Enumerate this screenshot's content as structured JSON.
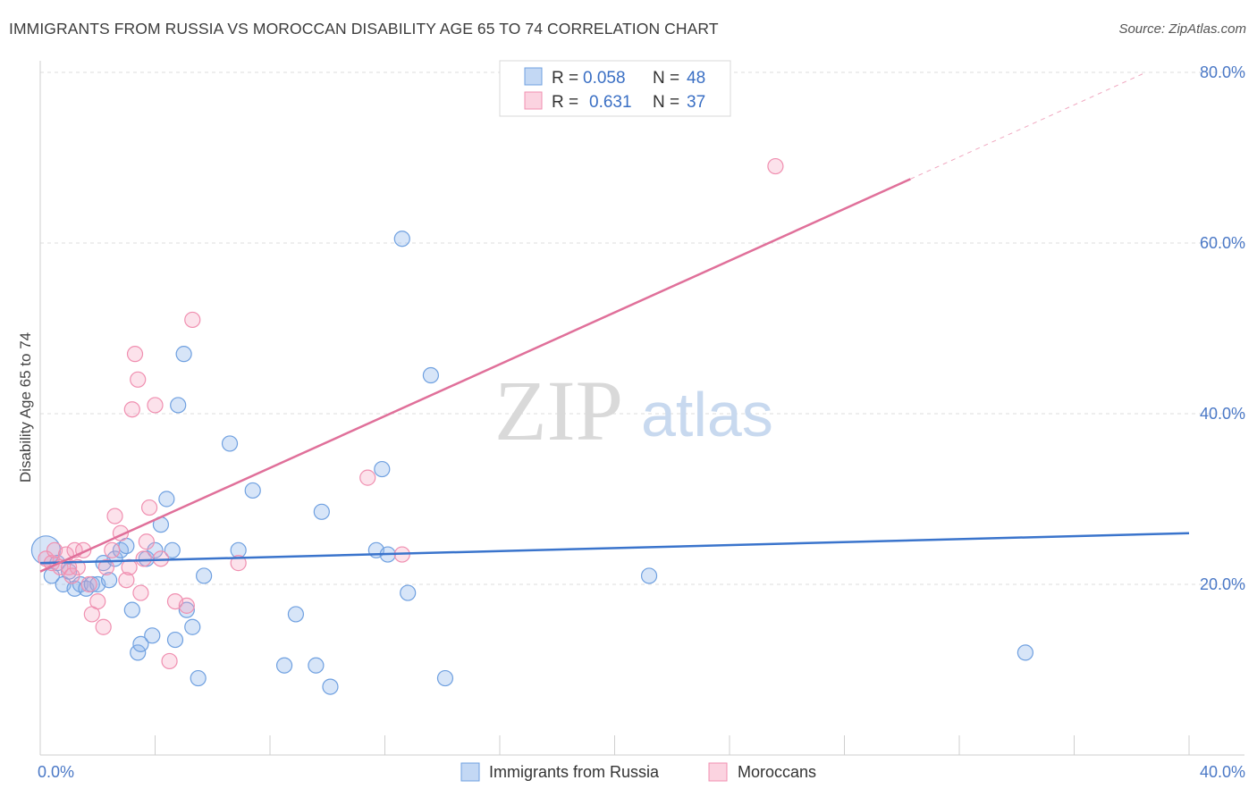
{
  "title": "IMMIGRANTS FROM RUSSIA VS MOROCCAN DISABILITY AGE 65 TO 74 CORRELATION CHART",
  "source": "Source: ZipAtlas.com",
  "watermark": {
    "zip": "ZIP",
    "atlas": "atlas"
  },
  "legend_top": [
    {
      "r_label": "R =",
      "r_value": "0.058",
      "n_label": "N =",
      "n_value": "48",
      "color": "#6fa0e0"
    },
    {
      "r_label": "R =",
      "r_value": "0.631",
      "n_label": "N =",
      "n_value": "37",
      "color": "#f08fb0"
    }
  ],
  "chart_data": {
    "type": "scatter",
    "title": "IMMIGRANTS FROM RUSSIA VS MOROCCAN DISABILITY AGE 65 TO 74 CORRELATION CHART",
    "xlabel": "",
    "ylabel": "Disability Age 65 to 74",
    "xlim": [
      0,
      40
    ],
    "ylim": [
      0,
      80
    ],
    "x_tick_labels": [
      "0.0%",
      "40.0%"
    ],
    "y_ticks": [
      20,
      40,
      60,
      80
    ],
    "y_tick_labels": [
      "20.0%",
      "40.0%",
      "60.0%",
      "80.0%"
    ],
    "grid": true,
    "legend_placement": "top-center",
    "series": [
      {
        "name": "Immigrants from Russia",
        "color": "#6fa0e0",
        "x": [
          0.2,
          0.4,
          0.6,
          0.8,
          1.0,
          1.2,
          1.4,
          1.6,
          1.8,
          2.0,
          2.2,
          2.4,
          2.6,
          2.8,
          3.0,
          3.2,
          3.4,
          3.5,
          3.7,
          3.9,
          4.0,
          4.2,
          4.4,
          4.6,
          4.7,
          4.8,
          5.0,
          5.1,
          5.3,
          5.5,
          5.7,
          6.6,
          6.9,
          7.4,
          8.5,
          8.9,
          9.6,
          9.8,
          10.1,
          11.7,
          11.9,
          12.1,
          12.6,
          12.8,
          13.6,
          14.1,
          21.2,
          34.3
        ],
        "y": [
          24.0,
          21.0,
          22.5,
          20.0,
          21.5,
          19.5,
          20.0,
          19.5,
          20.0,
          20.0,
          22.5,
          20.5,
          23.0,
          24.0,
          24.5,
          17.0,
          12.0,
          13.0,
          23.0,
          14.0,
          24.0,
          27.0,
          30.0,
          24.0,
          13.5,
          41.0,
          47.0,
          17.0,
          15.0,
          9.0,
          21.0,
          36.5,
          24.0,
          31.0,
          10.5,
          16.5,
          10.5,
          28.5,
          8.0,
          24.0,
          33.5,
          23.5,
          60.5,
          19.0,
          44.5,
          9.0,
          21.0,
          12.0
        ]
      },
      {
        "name": "Moroccans",
        "color": "#f08fb0",
        "x": [
          0.2,
          0.4,
          0.5,
          0.7,
          0.9,
          1.0,
          1.2,
          1.3,
          1.5,
          1.7,
          1.8,
          2.0,
          2.2,
          2.3,
          2.5,
          2.6,
          2.8,
          3.0,
          3.1,
          3.2,
          3.3,
          3.4,
          3.5,
          3.6,
          3.7,
          3.8,
          4.0,
          4.2,
          4.5,
          4.7,
          5.1,
          5.3,
          6.9,
          11.4,
          12.6,
          25.6,
          1.1
        ],
        "y": [
          23.0,
          22.5,
          24.0,
          22.0,
          23.5,
          22.0,
          24.0,
          22.0,
          24.0,
          20.0,
          16.5,
          18.0,
          15.0,
          22.0,
          24.0,
          28.0,
          26.0,
          20.5,
          22.0,
          40.5,
          47.0,
          44.0,
          19.0,
          23.0,
          25.0,
          29.0,
          41.0,
          23.0,
          11.0,
          18.0,
          17.5,
          51.0,
          22.5,
          32.5,
          23.5,
          69.0,
          21.0
        ]
      }
    ],
    "trendlines": [
      {
        "series": "Immigrants from Russia",
        "x": [
          0,
          40
        ],
        "y": [
          22.5,
          26.0
        ],
        "color": "#3a74cc"
      },
      {
        "series": "Moroccans",
        "x": [
          0,
          30.3
        ],
        "y": [
          21.5,
          67.5
        ],
        "dashed_extension_to": [
          38.5,
          80
        ],
        "color": "#e0709a"
      }
    ]
  }
}
